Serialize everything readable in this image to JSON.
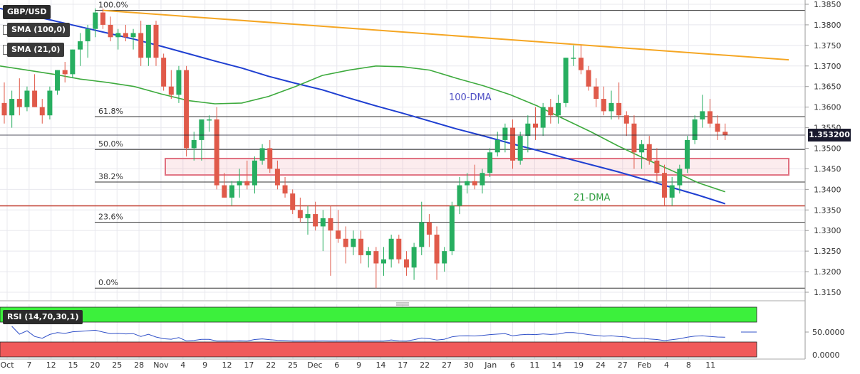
{
  "chart_data": {
    "type": "candlestick",
    "symbol": "GBP/USD",
    "indicators": [
      "SMA (100,0)",
      "SMA (21,0)"
    ],
    "ylim": [
      1.313,
      1.387
    ],
    "yticks": [
      "1.3850",
      "1.3800",
      "1.3750",
      "1.3700",
      "1.3650",
      "1.3600",
      "1.3550",
      "1.3500",
      "1.3450",
      "1.3400",
      "1.3350",
      "1.3300",
      "1.3250",
      "1.3200",
      "1.3150"
    ],
    "last_price": "1.353200",
    "x_tick_labels": [
      "Oct",
      "7",
      "12",
      "15",
      "20",
      "25",
      "28",
      "Nov",
      "4",
      "9",
      "12",
      "17",
      "22",
      "25",
      "Dec",
      "6",
      "9",
      "14",
      "17",
      "22",
      "27",
      "30",
      "Jan",
      "6",
      "11",
      "14",
      "19",
      "24",
      "27",
      "Feb",
      "4",
      "8",
      "11"
    ],
    "fib_levels": [
      {
        "label": "100.0%",
        "price": 1.3835
      },
      {
        "label": "61.8%",
        "price": 1.3577
      },
      {
        "label": "50.0%",
        "price": 1.3497
      },
      {
        "label": "38.2%",
        "price": 1.3418
      },
      {
        "label": "23.6%",
        "price": 1.332
      },
      {
        "label": "0.0%",
        "price": 1.316
      }
    ],
    "horizontal_support": 1.336,
    "support_zone": [
      1.3435,
      1.3475
    ],
    "resistance_line": {
      "start": [
        "Oct 20",
        1.3835
      ],
      "end": [
        "Feb 10",
        1.3715
      ]
    },
    "annotations": [
      "100-DMA",
      "21-DMA"
    ],
    "rsi": {
      "label": "RSI (14,70,30,1)",
      "yticks": [
        "50.0000",
        "0.0000"
      ],
      "overbought": 70,
      "oversold": 30
    },
    "candles": [
      [
        1.361,
        1.366,
        1.356,
        1.358
      ],
      [
        1.358,
        1.364,
        1.355,
        1.362
      ],
      [
        1.362,
        1.367,
        1.358,
        1.36
      ],
      [
        1.36,
        1.365,
        1.359,
        1.364
      ],
      [
        1.364,
        1.368,
        1.36,
        1.36
      ],
      [
        1.36,
        1.362,
        1.356,
        1.358
      ],
      [
        1.358,
        1.365,
        1.357,
        1.364
      ],
      [
        1.364,
        1.369,
        1.363,
        1.369
      ],
      [
        1.369,
        1.371,
        1.366,
        1.368
      ],
      [
        1.368,
        1.374,
        1.367,
        1.374
      ],
      [
        1.374,
        1.378,
        1.37,
        1.376
      ],
      [
        1.376,
        1.38,
        1.372,
        1.379
      ],
      [
        1.379,
        1.384,
        1.377,
        1.383
      ],
      [
        1.383,
        1.384,
        1.379,
        1.38
      ],
      [
        1.38,
        1.382,
        1.376,
        1.377
      ],
      [
        1.377,
        1.379,
        1.374,
        1.378
      ],
      [
        1.378,
        1.38,
        1.376,
        1.377
      ],
      [
        1.377,
        1.379,
        1.374,
        1.378
      ],
      [
        1.378,
        1.381,
        1.37,
        1.372
      ],
      [
        1.372,
        1.38,
        1.37,
        1.38
      ],
      [
        1.38,
        1.381,
        1.37,
        1.372
      ],
      [
        1.372,
        1.373,
        1.364,
        1.365
      ],
      [
        1.365,
        1.369,
        1.362,
        1.363
      ],
      [
        1.363,
        1.37,
        1.361,
        1.369
      ],
      [
        1.369,
        1.37,
        1.348,
        1.35
      ],
      [
        1.35,
        1.354,
        1.347,
        1.352
      ],
      [
        1.352,
        1.357,
        1.347,
        1.357
      ],
      [
        1.357,
        1.358,
        1.354,
        1.357
      ],
      [
        1.357,
        1.36,
        1.34,
        1.341
      ],
      [
        1.341,
        1.344,
        1.338,
        1.338
      ],
      [
        1.338,
        1.342,
        1.336,
        1.341
      ],
      [
        1.341,
        1.345,
        1.338,
        1.342
      ],
      [
        1.342,
        1.347,
        1.34,
        1.341
      ],
      [
        1.341,
        1.348,
        1.339,
        1.347
      ],
      [
        1.347,
        1.351,
        1.346,
        1.35
      ],
      [
        1.35,
        1.352,
        1.344,
        1.345
      ],
      [
        1.345,
        1.347,
        1.34,
        1.341
      ],
      [
        1.341,
        1.343,
        1.338,
        1.339
      ],
      [
        1.339,
        1.34,
        1.334,
        1.335
      ],
      [
        1.335,
        1.338,
        1.332,
        1.333
      ],
      [
        1.333,
        1.336,
        1.329,
        1.334
      ],
      [
        1.334,
        1.337,
        1.33,
        1.331
      ],
      [
        1.331,
        1.335,
        1.325,
        1.333
      ],
      [
        1.333,
        1.336,
        1.319,
        1.33
      ],
      [
        1.33,
        1.335,
        1.327,
        1.328
      ],
      [
        1.328,
        1.331,
        1.322,
        1.326
      ],
      [
        1.326,
        1.33,
        1.324,
        1.328
      ],
      [
        1.328,
        1.33,
        1.322,
        1.324
      ],
      [
        1.324,
        1.326,
        1.321,
        1.325
      ],
      [
        1.325,
        1.326,
        1.316,
        1.322
      ],
      [
        1.322,
        1.326,
        1.319,
        1.323
      ],
      [
        1.323,
        1.329,
        1.321,
        1.328
      ],
      [
        1.328,
        1.329,
        1.322,
        1.323
      ],
      [
        1.323,
        1.325,
        1.319,
        1.321
      ],
      [
        1.321,
        1.327,
        1.318,
        1.326
      ],
      [
        1.326,
        1.337,
        1.324,
        1.332
      ],
      [
        1.332,
        1.334,
        1.326,
        1.329
      ],
      [
        1.329,
        1.331,
        1.318,
        1.322
      ],
      [
        1.322,
        1.326,
        1.32,
        1.325
      ],
      [
        1.325,
        1.337,
        1.324,
        1.336
      ],
      [
        1.336,
        1.343,
        1.334,
        1.341
      ],
      [
        1.341,
        1.344,
        1.339,
        1.342
      ],
      [
        1.342,
        1.346,
        1.34,
        1.341
      ],
      [
        1.341,
        1.345,
        1.339,
        1.344
      ],
      [
        1.344,
        1.35,
        1.343,
        1.349
      ],
      [
        1.349,
        1.354,
        1.348,
        1.352
      ],
      [
        1.352,
        1.356,
        1.349,
        1.355
      ],
      [
        1.355,
        1.357,
        1.345,
        1.347
      ],
      [
        1.347,
        1.354,
        1.346,
        1.353
      ],
      [
        1.353,
        1.358,
        1.349,
        1.356
      ],
      [
        1.356,
        1.36,
        1.352,
        1.355
      ],
      [
        1.355,
        1.361,
        1.353,
        1.36
      ],
      [
        1.36,
        1.362,
        1.356,
        1.358
      ],
      [
        1.358,
        1.363,
        1.356,
        1.361
      ],
      [
        1.361,
        1.372,
        1.36,
        1.372
      ],
      [
        1.372,
        1.375,
        1.37,
        1.372
      ],
      [
        1.372,
        1.375,
        1.368,
        1.369
      ],
      [
        1.369,
        1.37,
        1.364,
        1.365
      ],
      [
        1.365,
        1.367,
        1.36,
        1.362
      ],
      [
        1.362,
        1.365,
        1.358,
        1.359
      ],
      [
        1.359,
        1.364,
        1.357,
        1.361
      ],
      [
        1.361,
        1.366,
        1.357,
        1.358
      ],
      [
        1.358,
        1.359,
        1.353,
        1.356
      ],
      [
        1.356,
        1.358,
        1.345,
        1.349
      ],
      [
        1.349,
        1.352,
        1.345,
        1.351
      ],
      [
        1.351,
        1.353,
        1.346,
        1.347
      ],
      [
        1.347,
        1.35,
        1.342,
        1.344
      ],
      [
        1.344,
        1.346,
        1.336,
        1.338
      ],
      [
        1.338,
        1.343,
        1.336,
        1.341
      ],
      [
        1.341,
        1.346,
        1.339,
        1.345
      ],
      [
        1.345,
        1.353,
        1.344,
        1.352
      ],
      [
        1.352,
        1.358,
        1.351,
        1.357
      ],
      [
        1.357,
        1.363,
        1.355,
        1.359
      ],
      [
        1.359,
        1.362,
        1.355,
        1.356
      ],
      [
        1.356,
        1.358,
        1.352,
        1.354
      ],
      [
        1.354,
        1.356,
        1.352,
        1.3532
      ]
    ],
    "sma100": [
      1.384,
      1.3825,
      1.381,
      1.3795,
      1.378,
      1.3765,
      1.3748,
      1.373,
      1.3712,
      1.3695,
      1.3675,
      1.3658,
      1.3642,
      1.3622,
      1.3603,
      1.3585,
      1.3566,
      1.3547,
      1.353,
      1.3512,
      1.3495,
      1.3477,
      1.346,
      1.3443,
      1.3424,
      1.3405,
      1.3386,
      1.3365
    ],
    "sma21": [
      1.37,
      1.369,
      1.368,
      1.3668,
      1.366,
      1.365,
      1.3632,
      1.3616,
      1.3608,
      1.361,
      1.3626,
      1.365,
      1.3677,
      1.369,
      1.37,
      1.3698,
      1.369,
      1.367,
      1.3652,
      1.363,
      1.3603,
      1.3571,
      1.354,
      1.3506,
      1.3475,
      1.3446,
      1.3416,
      1.3394
    ]
  }
}
